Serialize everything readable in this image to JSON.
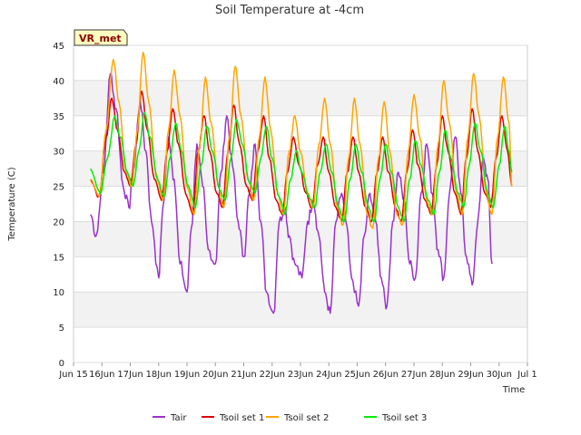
{
  "chart_data": {
    "type": "line",
    "title": "Soil Temperature at -4cm",
    "xlabel": "Time",
    "ylabel": "Temperature (C)",
    "badge": "VR_met",
    "ylim": [
      0,
      45
    ],
    "yticks": [
      0,
      5,
      10,
      15,
      20,
      25,
      30,
      35,
      40,
      45
    ],
    "xlim": [
      15.5,
      31.5
    ],
    "xticks": [
      {
        "x": 15.5,
        "label": "Jun 15"
      },
      {
        "x": 16.5,
        "label": "16Jun"
      },
      {
        "x": 17.5,
        "label": "17Jun"
      },
      {
        "x": 18.5,
        "label": "18Jun"
      },
      {
        "x": 19.5,
        "label": "19Jun"
      },
      {
        "x": 20.5,
        "label": "20Jun"
      },
      {
        "x": 21.5,
        "label": "21Jun"
      },
      {
        "x": 22.5,
        "label": "22Jun"
      },
      {
        "x": 23.5,
        "label": "23Jun"
      },
      {
        "x": 24.5,
        "label": "24Jun"
      },
      {
        "x": 25.5,
        "label": "25Jun"
      },
      {
        "x": 26.5,
        "label": "26Jun"
      },
      {
        "x": 27.5,
        "label": "27Jun"
      },
      {
        "x": 28.5,
        "label": "28Jun"
      },
      {
        "x": 29.5,
        "label": "29Jun"
      },
      {
        "x": 30.5,
        "label": "30Jun"
      },
      {
        "x": 31.5,
        "label": "Jul 1"
      }
    ],
    "grid": true,
    "legend_position": "bottom",
    "series": [
      {
        "name": "Tair",
        "color": "#9932cc",
        "points": [
          [
            16.1,
            21
          ],
          [
            16.3,
            18
          ],
          [
            16.55,
            27
          ],
          [
            16.8,
            41
          ],
          [
            17.0,
            36
          ],
          [
            17.25,
            25
          ],
          [
            17.45,
            22
          ],
          [
            17.6,
            27
          ],
          [
            17.85,
            37
          ],
          [
            18.05,
            30
          ],
          [
            18.25,
            20
          ],
          [
            18.5,
            12
          ],
          [
            18.65,
            22
          ],
          [
            18.85,
            32
          ],
          [
            19.05,
            26
          ],
          [
            19.25,
            14
          ],
          [
            19.5,
            10
          ],
          [
            19.65,
            19
          ],
          [
            19.85,
            31
          ],
          [
            20.05,
            25
          ],
          [
            20.25,
            16
          ],
          [
            20.5,
            14
          ],
          [
            20.7,
            27
          ],
          [
            20.9,
            35
          ],
          [
            21.1,
            28
          ],
          [
            21.3,
            20
          ],
          [
            21.5,
            15
          ],
          [
            21.7,
            24
          ],
          [
            21.9,
            31
          ],
          [
            22.1,
            20
          ],
          [
            22.3,
            10
          ],
          [
            22.55,
            7
          ],
          [
            22.75,
            20
          ],
          [
            22.95,
            22
          ],
          [
            23.1,
            18
          ],
          [
            23.3,
            14
          ],
          [
            23.55,
            12
          ],
          [
            23.75,
            20
          ],
          [
            23.95,
            23
          ],
          [
            24.15,
            18
          ],
          [
            24.35,
            10
          ],
          [
            24.55,
            7
          ],
          [
            24.75,
            20
          ],
          [
            24.95,
            24
          ],
          [
            25.1,
            20
          ],
          [
            25.3,
            12
          ],
          [
            25.55,
            8
          ],
          [
            25.75,
            18
          ],
          [
            25.95,
            24
          ],
          [
            26.15,
            20
          ],
          [
            26.35,
            12
          ],
          [
            26.55,
            8
          ],
          [
            26.75,
            20
          ],
          [
            26.95,
            27
          ],
          [
            27.15,
            23
          ],
          [
            27.35,
            14
          ],
          [
            27.55,
            12
          ],
          [
            27.75,
            24
          ],
          [
            27.95,
            31
          ],
          [
            28.15,
            24
          ],
          [
            28.35,
            16
          ],
          [
            28.55,
            12
          ],
          [
            28.75,
            24
          ],
          [
            28.95,
            32
          ],
          [
            29.15,
            24
          ],
          [
            29.35,
            15
          ],
          [
            29.55,
            11
          ],
          [
            29.75,
            20
          ],
          [
            29.95,
            29
          ],
          [
            30.1,
            26
          ],
          [
            30.25,
            14
          ]
        ]
      },
      {
        "name": "Tsoil set 1",
        "color": "#dd0000",
        "points": [
          [
            16.1,
            26
          ],
          [
            16.4,
            23.5
          ],
          [
            16.65,
            32
          ],
          [
            16.85,
            37.5
          ],
          [
            17.05,
            33
          ],
          [
            17.3,
            27
          ],
          [
            17.5,
            25
          ],
          [
            17.7,
            31
          ],
          [
            17.9,
            38.5
          ],
          [
            18.1,
            33
          ],
          [
            18.35,
            26
          ],
          [
            18.6,
            23
          ],
          [
            18.8,
            30
          ],
          [
            19.0,
            36
          ],
          [
            19.2,
            31
          ],
          [
            19.45,
            24
          ],
          [
            19.7,
            21
          ],
          [
            19.9,
            30
          ],
          [
            20.1,
            35
          ],
          [
            20.3,
            30
          ],
          [
            20.55,
            24
          ],
          [
            20.75,
            22
          ],
          [
            20.95,
            30
          ],
          [
            21.15,
            36.5
          ],
          [
            21.35,
            31
          ],
          [
            21.6,
            25
          ],
          [
            21.8,
            23
          ],
          [
            22.0,
            30
          ],
          [
            22.2,
            35
          ],
          [
            22.4,
            29
          ],
          [
            22.65,
            23
          ],
          [
            22.85,
            21
          ],
          [
            23.05,
            27
          ],
          [
            23.25,
            32
          ],
          [
            23.45,
            28
          ],
          [
            23.7,
            24
          ],
          [
            23.9,
            22
          ],
          [
            24.1,
            28
          ],
          [
            24.3,
            32
          ],
          [
            24.5,
            27
          ],
          [
            24.75,
            22
          ],
          [
            24.95,
            20
          ],
          [
            25.15,
            27
          ],
          [
            25.35,
            32
          ],
          [
            25.55,
            27
          ],
          [
            25.8,
            22
          ],
          [
            26.0,
            20
          ],
          [
            26.2,
            27
          ],
          [
            26.4,
            32
          ],
          [
            26.6,
            27
          ],
          [
            26.85,
            22
          ],
          [
            27.05,
            20
          ],
          [
            27.25,
            27
          ],
          [
            27.45,
            33
          ],
          [
            27.65,
            28
          ],
          [
            27.9,
            23
          ],
          [
            28.1,
            21
          ],
          [
            28.3,
            28
          ],
          [
            28.5,
            35
          ],
          [
            28.7,
            30
          ],
          [
            28.95,
            24
          ],
          [
            29.15,
            21
          ],
          [
            29.35,
            29
          ],
          [
            29.55,
            36
          ],
          [
            29.75,
            30
          ],
          [
            30.0,
            24
          ],
          [
            30.2,
            22
          ],
          [
            30.4,
            29
          ],
          [
            30.6,
            35
          ],
          [
            30.8,
            30
          ],
          [
            30.95,
            25
          ]
        ]
      },
      {
        "name": "Tsoil set 2",
        "color": "#ffa500",
        "points": [
          [
            16.1,
            26
          ],
          [
            16.4,
            23.5
          ],
          [
            16.65,
            33
          ],
          [
            16.9,
            43
          ],
          [
            17.1,
            37
          ],
          [
            17.35,
            27
          ],
          [
            17.55,
            25
          ],
          [
            17.75,
            33
          ],
          [
            17.95,
            44
          ],
          [
            18.15,
            37
          ],
          [
            18.4,
            27
          ],
          [
            18.65,
            23
          ],
          [
            18.85,
            33
          ],
          [
            19.05,
            41.5
          ],
          [
            19.25,
            35
          ],
          [
            19.5,
            25
          ],
          [
            19.75,
            21
          ],
          [
            19.95,
            31
          ],
          [
            20.15,
            40.5
          ],
          [
            20.35,
            34
          ],
          [
            20.6,
            25
          ],
          [
            20.8,
            22
          ],
          [
            21.0,
            32
          ],
          [
            21.2,
            42
          ],
          [
            21.4,
            35
          ],
          [
            21.65,
            26
          ],
          [
            21.85,
            23
          ],
          [
            22.05,
            32
          ],
          [
            22.25,
            40.5
          ],
          [
            22.45,
            33
          ],
          [
            22.7,
            24
          ],
          [
            22.9,
            21
          ],
          [
            23.1,
            30
          ],
          [
            23.3,
            35
          ],
          [
            23.5,
            30
          ],
          [
            23.75,
            24
          ],
          [
            23.95,
            22
          ],
          [
            24.15,
            31
          ],
          [
            24.35,
            37.5
          ],
          [
            24.55,
            31
          ],
          [
            24.8,
            22
          ],
          [
            25.0,
            19.5
          ],
          [
            25.2,
            29
          ],
          [
            25.4,
            37.5
          ],
          [
            25.6,
            31
          ],
          [
            25.85,
            21
          ],
          [
            26.05,
            19
          ],
          [
            26.25,
            29
          ],
          [
            26.45,
            37
          ],
          [
            26.65,
            30
          ],
          [
            26.9,
            21
          ],
          [
            27.1,
            19.5
          ],
          [
            27.3,
            30
          ],
          [
            27.5,
            38
          ],
          [
            27.7,
            32
          ],
          [
            27.95,
            23
          ],
          [
            28.15,
            21
          ],
          [
            28.35,
            31
          ],
          [
            28.55,
            40
          ],
          [
            28.75,
            34
          ],
          [
            29.0,
            24
          ],
          [
            29.2,
            21
          ],
          [
            29.4,
            32
          ],
          [
            29.6,
            41
          ],
          [
            29.8,
            35
          ],
          [
            30.05,
            24
          ],
          [
            30.25,
            21
          ],
          [
            30.45,
            32
          ],
          [
            30.65,
            40.5
          ],
          [
            30.85,
            34
          ],
          [
            30.95,
            25
          ]
        ]
      },
      {
        "name": "Tsoil set 3",
        "color": "#00ee00",
        "points": [
          [
            16.1,
            27.5
          ],
          [
            16.45,
            24
          ],
          [
            16.7,
            29
          ],
          [
            16.95,
            35
          ],
          [
            17.15,
            32
          ],
          [
            17.4,
            27
          ],
          [
            17.6,
            25
          ],
          [
            17.8,
            30
          ],
          [
            18.0,
            35.5
          ],
          [
            18.2,
            32
          ],
          [
            18.45,
            26
          ],
          [
            18.7,
            23.5
          ],
          [
            18.9,
            29
          ],
          [
            19.1,
            34
          ],
          [
            19.3,
            30
          ],
          [
            19.55,
            25
          ],
          [
            19.8,
            22
          ],
          [
            20.0,
            28
          ],
          [
            20.2,
            33.5
          ],
          [
            20.4,
            30
          ],
          [
            20.65,
            24.5
          ],
          [
            20.85,
            23
          ],
          [
            21.05,
            29
          ],
          [
            21.25,
            34.5
          ],
          [
            21.45,
            31
          ],
          [
            21.7,
            25.5
          ],
          [
            21.9,
            24
          ],
          [
            22.1,
            29
          ],
          [
            22.3,
            33.5
          ],
          [
            22.5,
            29
          ],
          [
            22.75,
            23.5
          ],
          [
            22.95,
            21
          ],
          [
            23.15,
            26
          ],
          [
            23.35,
            30
          ],
          [
            23.55,
            27
          ],
          [
            23.8,
            23.5
          ],
          [
            24.0,
            22
          ],
          [
            24.2,
            27
          ],
          [
            24.4,
            31
          ],
          [
            24.6,
            27
          ],
          [
            24.85,
            22
          ],
          [
            25.05,
            20
          ],
          [
            25.25,
            26
          ],
          [
            25.45,
            31
          ],
          [
            25.65,
            27
          ],
          [
            25.9,
            22
          ],
          [
            26.1,
            20
          ],
          [
            26.3,
            26
          ],
          [
            26.5,
            31
          ],
          [
            26.7,
            27
          ],
          [
            26.95,
            22
          ],
          [
            27.15,
            20
          ],
          [
            27.35,
            26
          ],
          [
            27.55,
            31.5
          ],
          [
            27.75,
            28
          ],
          [
            28.0,
            23
          ],
          [
            28.2,
            21
          ],
          [
            28.4,
            27
          ],
          [
            28.6,
            33
          ],
          [
            28.8,
            29
          ],
          [
            29.05,
            24
          ],
          [
            29.25,
            22
          ],
          [
            29.45,
            28
          ],
          [
            29.65,
            34
          ],
          [
            29.85,
            30
          ],
          [
            30.1,
            24
          ],
          [
            30.3,
            22
          ],
          [
            30.5,
            28
          ],
          [
            30.7,
            33.5
          ],
          [
            30.85,
            30
          ],
          [
            30.95,
            27
          ]
        ]
      }
    ]
  }
}
